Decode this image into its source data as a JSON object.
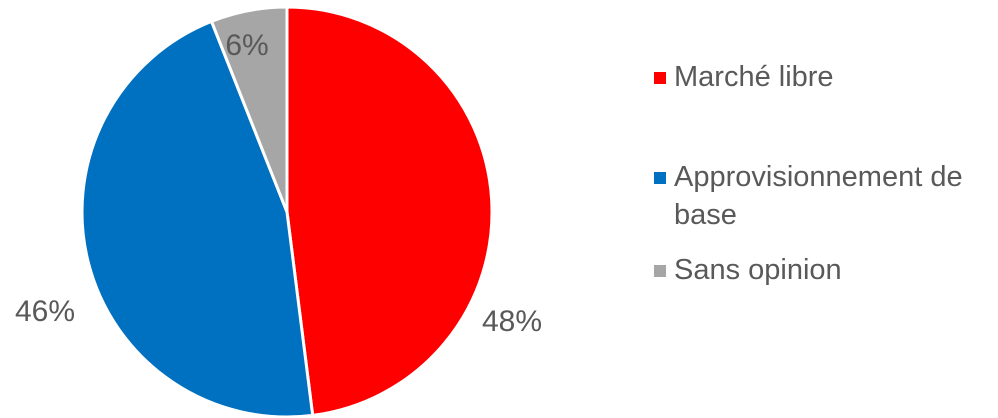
{
  "chart_data": {
    "type": "pie",
    "title": "",
    "categories": [
      "Marché libre",
      "Approvisionnement de base",
      "Sans opinion"
    ],
    "values": [
      48,
      46,
      6
    ],
    "data_labels": [
      "48%",
      "46%",
      "6%"
    ],
    "colors": [
      "#ff0000",
      "#0070c0",
      "#a6a6a6"
    ],
    "legend_position": "right",
    "start_angle": "top",
    "direction": "clockwise"
  }
}
